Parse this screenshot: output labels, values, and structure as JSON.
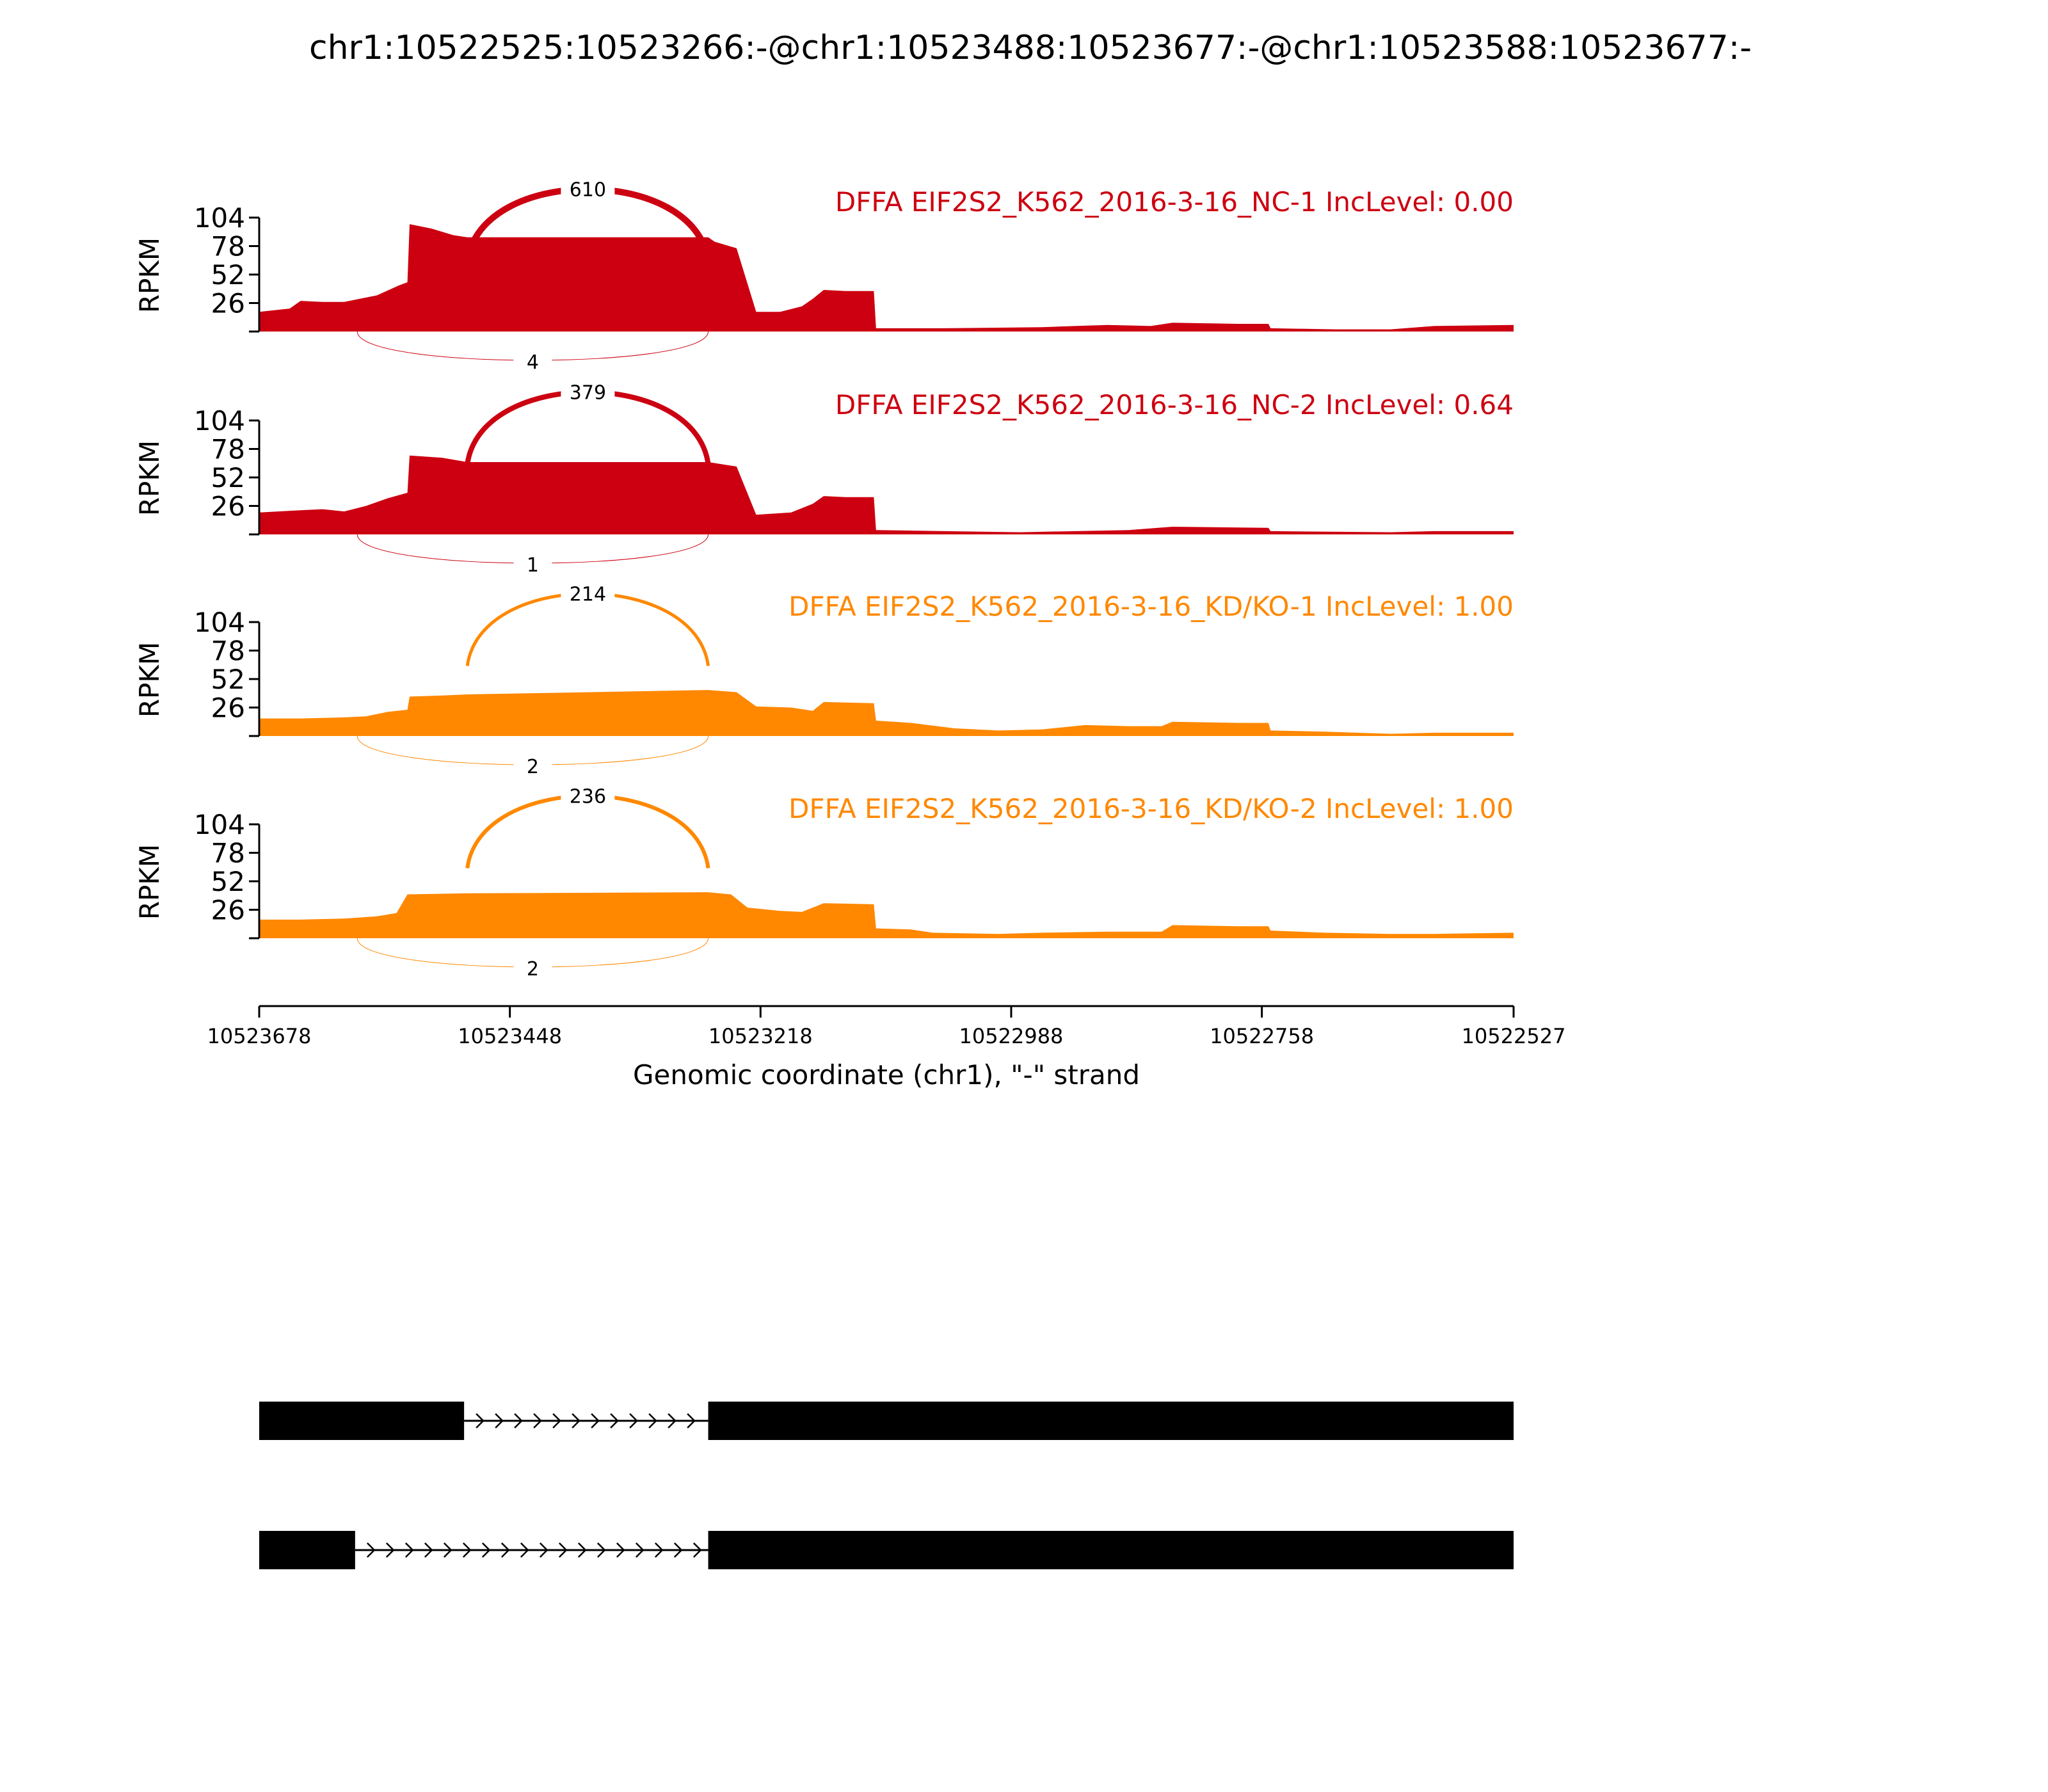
{
  "title": "chr1:10522525:10523266:-@chr1:10523488:10523677:-@chr1:10523588:10523677:-",
  "colors": {
    "nc": "#CC0011",
    "kd": "#FF8800",
    "axis": "#000000",
    "gene": "#000000"
  },
  "chart_data": {
    "type": "area",
    "subtype": "sashimi",
    "ylabel": "RPKM",
    "yticks": [
      26,
      52,
      78,
      104
    ],
    "ylim": [
      0,
      104
    ],
    "xlabel": "Genomic coordinate (chr1), \"-\" strand",
    "xlim": [
      10523678,
      10522527
    ],
    "xticks": [
      "10523678",
      "10523448",
      "10523218",
      "10522988",
      "10522758",
      "10522527"
    ],
    "x_reversed": true,
    "tracks": [
      {
        "label": "DFFA EIF2S2_K562_2016-3-16_NC-1 IncLevel: 0.00",
        "color_key": "nc",
        "coverage": [
          [
            10523678,
            18
          ],
          [
            10523650,
            21
          ],
          [
            10523640,
            28
          ],
          [
            10523620,
            27
          ],
          [
            10523600,
            27
          ],
          [
            10523570,
            33
          ],
          [
            10523550,
            42
          ],
          [
            10523542,
            45
          ],
          [
            10523540,
            98
          ],
          [
            10523520,
            94
          ],
          [
            10523500,
            88
          ],
          [
            10523487,
            86
          ],
          [
            10523266,
            86
          ],
          [
            10523260,
            82
          ],
          [
            10523240,
            76
          ],
          [
            10523222,
            18
          ],
          [
            10523200,
            18
          ],
          [
            10523180,
            23
          ],
          [
            10523170,
            30
          ],
          [
            10523160,
            38
          ],
          [
            10523140,
            37
          ],
          [
            10523114,
            37
          ],
          [
            10523112,
            3
          ],
          [
            10523050,
            3
          ],
          [
            10522960,
            4
          ],
          [
            10522900,
            6
          ],
          [
            10522860,
            5
          ],
          [
            10522840,
            8
          ],
          [
            10522780,
            7
          ],
          [
            10522752,
            7
          ],
          [
            10522750,
            3
          ],
          [
            10522690,
            2
          ],
          [
            10522640,
            2
          ],
          [
            10522600,
            5
          ],
          [
            10522527,
            6
          ]
        ],
        "arc_above": {
          "from": 10523487,
          "to": 10523266,
          "count": "610",
          "width": 10
        },
        "arc_below": {
          "from": 10523588,
          "to": 10523266,
          "count": "4",
          "width": 1
        }
      },
      {
        "label": "DFFA EIF2S2_K562_2016-3-16_NC-2 IncLevel: 0.64",
        "color_key": "nc",
        "coverage": [
          [
            10523678,
            20
          ],
          [
            10523640,
            22
          ],
          [
            10523620,
            23
          ],
          [
            10523600,
            21
          ],
          [
            10523580,
            26
          ],
          [
            10523560,
            33
          ],
          [
            10523542,
            38
          ],
          [
            10523540,
            72
          ],
          [
            10523510,
            70
          ],
          [
            10523487,
            66
          ],
          [
            10523266,
            66
          ],
          [
            10523240,
            62
          ],
          [
            10523222,
            18
          ],
          [
            10523190,
            20
          ],
          [
            10523170,
            28
          ],
          [
            10523160,
            35
          ],
          [
            10523140,
            34
          ],
          [
            10523114,
            34
          ],
          [
            10523112,
            4
          ],
          [
            10523050,
            3
          ],
          [
            10522980,
            2
          ],
          [
            10522880,
            4
          ],
          [
            10522840,
            7
          ],
          [
            10522752,
            6
          ],
          [
            10522750,
            3
          ],
          [
            10522640,
            2
          ],
          [
            10522600,
            3
          ],
          [
            10522527,
            3
          ]
        ],
        "arc_above": {
          "from": 10523487,
          "to": 10523266,
          "count": "379",
          "width": 8
        },
        "arc_below": {
          "from": 10523588,
          "to": 10523266,
          "count": "1",
          "width": 1
        }
      },
      {
        "label": "DFFA EIF2S2_K562_2016-3-16_KD/KO-1 IncLevel: 1.00",
        "color_key": "kd",
        "coverage": [
          [
            10523678,
            16
          ],
          [
            10523640,
            16
          ],
          [
            10523600,
            17
          ],
          [
            10523580,
            18
          ],
          [
            10523560,
            22
          ],
          [
            10523542,
            24
          ],
          [
            10523540,
            36
          ],
          [
            10523510,
            37
          ],
          [
            10523487,
            38
          ],
          [
            10523266,
            42
          ],
          [
            10523240,
            40
          ],
          [
            10523222,
            27
          ],
          [
            10523190,
            26
          ],
          [
            10523170,
            23
          ],
          [
            10523160,
            31
          ],
          [
            10523114,
            30
          ],
          [
            10523112,
            14
          ],
          [
            10523080,
            12
          ],
          [
            10523040,
            7
          ],
          [
            10523000,
            5
          ],
          [
            10522960,
            6
          ],
          [
            10522920,
            10
          ],
          [
            10522880,
            9
          ],
          [
            10522850,
            9
          ],
          [
            10522840,
            13
          ],
          [
            10522780,
            12
          ],
          [
            10522752,
            12
          ],
          [
            10522750,
            5
          ],
          [
            10522700,
            4
          ],
          [
            10522640,
            2
          ],
          [
            10522600,
            3
          ],
          [
            10522527,
            3
          ]
        ],
        "arc_above": {
          "from": 10523487,
          "to": 10523266,
          "count": "214",
          "width": 5
        },
        "arc_below": {
          "from": 10523588,
          "to": 10523266,
          "count": "2",
          "width": 1
        }
      },
      {
        "label": "DFFA EIF2S2_K562_2016-3-16_KD/KO-2 IncLevel: 1.00",
        "color_key": "kd",
        "coverage": [
          [
            10523678,
            17
          ],
          [
            10523640,
            17
          ],
          [
            10523600,
            18
          ],
          [
            10523570,
            20
          ],
          [
            10523552,
            23
          ],
          [
            10523542,
            40
          ],
          [
            10523487,
            41
          ],
          [
            10523266,
            42
          ],
          [
            10523245,
            40
          ],
          [
            10523230,
            28
          ],
          [
            10523200,
            25
          ],
          [
            10523180,
            24
          ],
          [
            10523160,
            32
          ],
          [
            10523114,
            31
          ],
          [
            10523112,
            9
          ],
          [
            10523080,
            8
          ],
          [
            10523060,
            5
          ],
          [
            10523000,
            4
          ],
          [
            10522960,
            5
          ],
          [
            10522900,
            6
          ],
          [
            10522850,
            6
          ],
          [
            10522840,
            12
          ],
          [
            10522780,
            11
          ],
          [
            10522752,
            11
          ],
          [
            10522750,
            7
          ],
          [
            10522700,
            5
          ],
          [
            10522640,
            4
          ],
          [
            10522600,
            4
          ],
          [
            10522527,
            5
          ]
        ],
        "arc_above": {
          "from": 10523487,
          "to": 10523266,
          "count": "236",
          "width": 6
        },
        "arc_below": {
          "from": 10523588,
          "to": 10523266,
          "count": "2",
          "width": 1
        }
      }
    ],
    "isoforms": [
      {
        "exons": [
          [
            10523678,
            10523490
          ],
          [
            10523266,
            10522527
          ]
        ],
        "intron": [
          10523490,
          10523266
        ]
      },
      {
        "exons": [
          [
            10523678,
            10523590
          ],
          [
            10523266,
            10522527
          ]
        ],
        "intron": [
          10523590,
          10523266
        ]
      }
    ]
  }
}
